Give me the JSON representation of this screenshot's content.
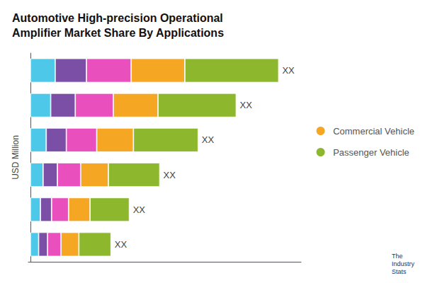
{
  "chart_data": {
    "type": "bar",
    "title": "Automotive High-precision Operational\nAmplifier Market Share By Applications",
    "subtitle": "The\nIndustry\nStats",
    "ylabel": "USD Million",
    "orientation": "horizontal",
    "stacked": true,
    "categories": [
      null,
      null,
      null,
      null,
      null,
      null
    ],
    "series": [
      {
        "color": "#4dc8e8",
        "values": [
          0.55,
          0.45,
          0.35,
          0.28,
          0.22,
          0.18
        ]
      },
      {
        "color": "#7b4fa6",
        "values": [
          0.7,
          0.55,
          0.45,
          0.32,
          0.25,
          0.2
        ]
      },
      {
        "color": "#e94fbd",
        "values": [
          1.0,
          0.85,
          0.68,
          0.52,
          0.38,
          0.3
        ]
      },
      {
        "name": "Commercial Vehicle",
        "color": "#f5a623",
        "values": [
          1.2,
          1.0,
          0.82,
          0.62,
          0.48,
          0.4
        ]
      },
      {
        "name": "Passenger Vehicle",
        "color": "#8db82e",
        "values": [
          2.1,
          1.75,
          1.45,
          1.15,
          0.88,
          0.72
        ]
      }
    ],
    "annotations": [
      "XX",
      "XX",
      "XX",
      "XX",
      "XX",
      "XX"
    ],
    "xlim": [
      -0.05,
      6.05
    ],
    "grid": false,
    "legend": "right",
    "tick_labels": false
  }
}
